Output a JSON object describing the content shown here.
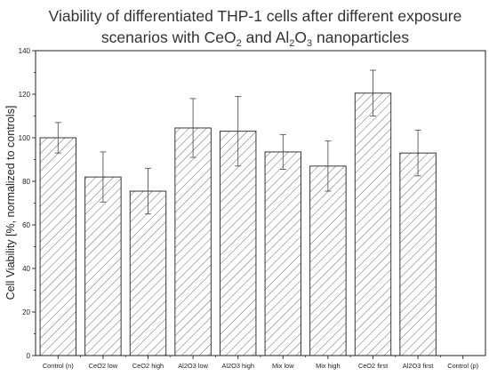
{
  "chart_data": {
    "type": "bar",
    "title_line1": "Viability of differentiated THP-1 cells after different exposure",
    "title_line2": {
      "t1": "scenarios with CeO",
      "s1": "2",
      "t2": " and Al",
      "s2": "2",
      "t3": "O",
      "s3": "3",
      "t4": " nanoparticles"
    },
    "ylabel": "Cell Viability [%, normalized to controls]",
    "xlabel": "",
    "ylim": [
      0,
      140
    ],
    "yticks": [
      0,
      20,
      40,
      60,
      80,
      100,
      120,
      140
    ],
    "categories": [
      "Control (n)",
      "CeO2 low",
      "CeO2 high",
      "Al2O3 low",
      "Al2O3 high",
      "Mix low",
      "Mix high",
      "CeO2 first",
      "Al2O3 first",
      "Control (p)"
    ],
    "values": [
      100,
      82,
      75.5,
      104.5,
      103,
      93.5,
      87,
      120.5,
      93,
      0
    ],
    "errors": [
      7,
      11.5,
      10.5,
      13.5,
      16,
      8,
      11.5,
      10.5,
      10.5,
      0
    ],
    "grid": false,
    "bar_fill": "hatched",
    "bar_color": "#333333"
  }
}
